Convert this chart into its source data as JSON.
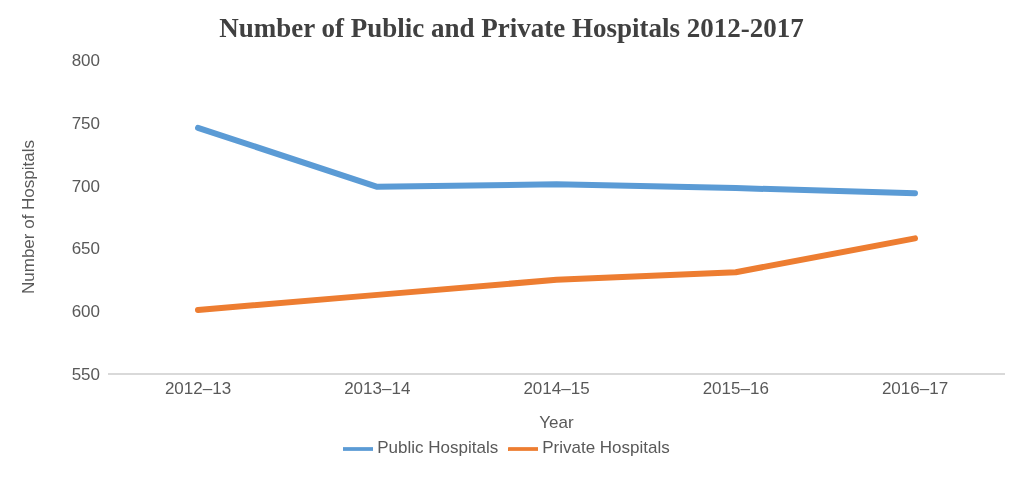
{
  "chart_data": {
    "type": "line",
    "title": "Number of Public and Private Hospitals 2012-2017",
    "xlabel": "Year",
    "ylabel": "Number of Hospitals",
    "categories": [
      "2012–13",
      "2013–14",
      "2014–15",
      "2015–16",
      "2016–17"
    ],
    "series": [
      {
        "name": "Public Hospitals",
        "color": "#5b9bd5",
        "values": [
          746,
          699,
          701,
          698,
          694
        ]
      },
      {
        "name": "Private Hospitals",
        "color": "#ed7d31",
        "values": [
          601,
          613,
          625,
          631,
          658
        ]
      }
    ],
    "ylim": [
      550,
      800
    ],
    "yticks": [
      550,
      600,
      650,
      700,
      750,
      800
    ],
    "grid": false,
    "legend": "bottom",
    "marker": "none",
    "line_style": "solid"
  }
}
